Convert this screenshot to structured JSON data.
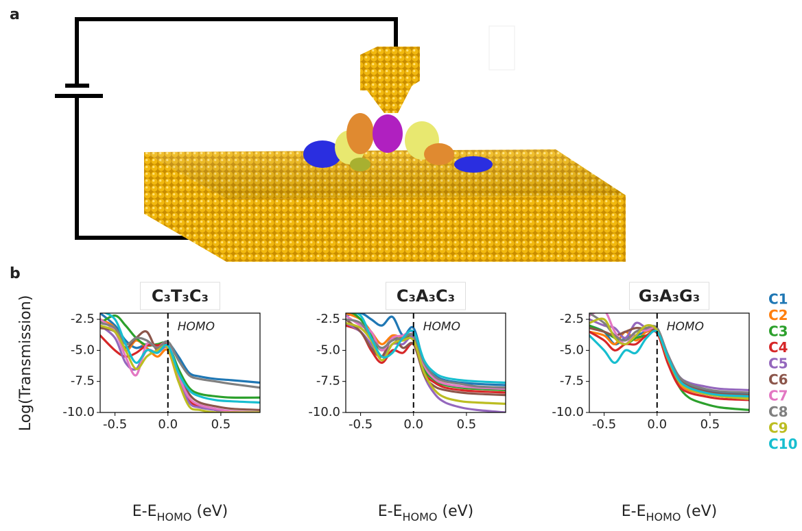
{
  "panel_labels": [
    "a",
    "b"
  ],
  "ylabel": "Log(Transmission)",
  "legend": [
    {
      "name": "C1",
      "color": "#1f77b4"
    },
    {
      "name": "C2",
      "color": "#ff7f0e"
    },
    {
      "name": "C3",
      "color": "#2ca02c"
    },
    {
      "name": "C4",
      "color": "#d62728"
    },
    {
      "name": "C5",
      "color": "#9467bd"
    },
    {
      "name": "C6",
      "color": "#8c564b"
    },
    {
      "name": "C7",
      "color": "#e377c2"
    },
    {
      "name": "C8",
      "color": "#7f7f7f"
    },
    {
      "name": "C9",
      "color": "#bcbd22"
    },
    {
      "name": "C10",
      "color": "#17becf"
    }
  ],
  "chart_data": [
    {
      "type": "line",
      "title": "C₃T₃C₃",
      "annotation": "HOMO",
      "xlabel": {
        "main": "E-E",
        "sub": "HOMO",
        "unit": " (eV)"
      },
      "vline": 0,
      "x": [
        -0.64,
        -0.5,
        -0.4,
        -0.3,
        -0.2,
        -0.1,
        0,
        0.1,
        0.2,
        0.3,
        0.45,
        0.6,
        0.87
      ],
      "xlim": [
        -0.64,
        0.87
      ],
      "ylim": [
        -10,
        -2.0
      ],
      "xticks": [
        -0.5,
        {
          "value": 0,
          "label": "0.0"
        },
        0.5
      ],
      "yticks": [
        -2.5,
        {
          "value": -5,
          "label": "-5.0"
        },
        -7.5,
        {
          "value": -10,
          "label": "-10.0"
        }
      ],
      "series": [
        {
          "values": [
            -2.0,
            -3.0,
            -4.2,
            -4.8,
            -4.5,
            -4.6,
            -4.4,
            -5.5,
            -6.8,
            -7.1,
            -7.3,
            -7.4,
            -7.6
          ]
        },
        {
          "values": [
            -2.5,
            -3.2,
            -5.0,
            -4.2,
            -4.8,
            -5.5,
            -5.0,
            -7.5,
            -9.0,
            -9.5,
            -9.8,
            -10,
            -10
          ]
        },
        {
          "values": [
            -2.8,
            -2.2,
            -3.0,
            -4.0,
            -4.6,
            -4.5,
            -4.5,
            -6.5,
            -8.0,
            -8.5,
            -8.7,
            -8.8,
            -8.8
          ]
        },
        {
          "values": [
            -3.8,
            -5.0,
            -5.5,
            -5.2,
            -4.6,
            -4.6,
            -4.6,
            -7.0,
            -9.0,
            -9.5,
            -9.8,
            -10,
            -10
          ]
        },
        {
          "values": [
            -3.0,
            -4.0,
            -6.0,
            -6.5,
            -5.0,
            -5.2,
            -4.8,
            -7.2,
            -9.2,
            -9.6,
            -9.8,
            -10,
            -10
          ]
        },
        {
          "values": [
            -3.2,
            -3.5,
            -4.8,
            -4.0,
            -3.5,
            -5.0,
            -4.6,
            -6.8,
            -8.5,
            -9.2,
            -9.5,
            -9.7,
            -9.8
          ]
        },
        {
          "values": [
            -2.5,
            -3.5,
            -5.5,
            -7.0,
            -4.5,
            -4.8,
            -4.4,
            -7.0,
            -8.8,
            -9.4,
            -9.7,
            -9.9,
            -10
          ]
        },
        {
          "values": [
            -2.8,
            -3.2,
            -4.5,
            -4.0,
            -4.2,
            -4.8,
            -4.3,
            -5.8,
            -7.0,
            -7.3,
            -7.5,
            -7.7,
            -8.0
          ]
        },
        {
          "values": [
            -3.0,
            -3.5,
            -5.0,
            -6.5,
            -5.5,
            -5.0,
            -4.8,
            -7.5,
            -9.5,
            -9.8,
            -10,
            -10,
            -10
          ]
        },
        {
          "values": [
            -1.8,
            -2.5,
            -4.5,
            -6.0,
            -5.0,
            -5.2,
            -4.6,
            -6.8,
            -8.2,
            -8.7,
            -9.0,
            -9.1,
            -9.2
          ]
        }
      ]
    },
    {
      "type": "line",
      "title": "C₃A₃C₃",
      "annotation": "HOMO",
      "xlabel": {
        "main": "E-E",
        "sub": "HOMO",
        "unit": " (eV)"
      },
      "vline": 0,
      "x": [
        -0.64,
        -0.5,
        -0.4,
        -0.3,
        -0.2,
        -0.1,
        0,
        0.1,
        0.2,
        0.3,
        0.45,
        0.6,
        0.87
      ],
      "xlim": [
        -0.64,
        0.87
      ],
      "ylim": [
        -10,
        -2.0
      ],
      "xticks": [
        -0.5,
        {
          "value": 0,
          "label": "0.0"
        },
        0.5
      ],
      "yticks": [
        -2.5,
        {
          "value": -5,
          "label": "-5.0"
        },
        -7.5,
        {
          "value": -10,
          "label": "-10.0"
        }
      ],
      "series": [
        {
          "values": [
            -2.2,
            -2.0,
            -2.5,
            -3.0,
            -2.3,
            -3.8,
            -3.2,
            -6.0,
            -7.0,
            -7.4,
            -7.6,
            -7.7,
            -7.8
          ]
        },
        {
          "values": [
            -2.0,
            -2.5,
            -3.5,
            -4.5,
            -3.8,
            -4.0,
            -4.0,
            -6.2,
            -7.3,
            -7.7,
            -8.0,
            -8.1,
            -8.2
          ]
        },
        {
          "values": [
            -1.6,
            -2.5,
            -3.8,
            -5.0,
            -4.0,
            -4.2,
            -4.0,
            -6.5,
            -7.4,
            -7.8,
            -8.0,
            -8.1,
            -8.2
          ]
        },
        {
          "values": [
            -3.0,
            -3.5,
            -5.0,
            -6.0,
            -5.0,
            -5.2,
            -4.5,
            -6.8,
            -7.6,
            -8.0,
            -8.2,
            -8.3,
            -8.4
          ]
        },
        {
          "values": [
            -2.8,
            -3.5,
            -4.5,
            -5.5,
            -4.5,
            -4.5,
            -4.0,
            -7.0,
            -8.5,
            -9.2,
            -9.6,
            -9.8,
            -10
          ]
        },
        {
          "values": [
            -2.5,
            -3.5,
            -4.8,
            -5.5,
            -4.0,
            -4.8,
            -4.5,
            -7.0,
            -7.9,
            -8.2,
            -8.4,
            -8.5,
            -8.6
          ]
        },
        {
          "values": [
            -2.2,
            -3.0,
            -3.5,
            -5.0,
            -4.0,
            -3.8,
            -3.6,
            -6.2,
            -7.3,
            -7.7,
            -7.9,
            -8.0,
            -8.1
          ]
        },
        {
          "values": [
            -2.5,
            -2.8,
            -4.0,
            -4.8,
            -4.2,
            -4.0,
            -3.8,
            -6.0,
            -7.1,
            -7.5,
            -7.7,
            -7.9,
            -8.0
          ]
        },
        {
          "values": [
            -2.8,
            -3.2,
            -4.2,
            -5.8,
            -4.5,
            -4.2,
            -4.2,
            -6.8,
            -8.2,
            -8.8,
            -9.1,
            -9.2,
            -9.3
          ]
        },
        {
          "values": [
            -1.8,
            -2.2,
            -4.0,
            -5.5,
            -5.2,
            -4.0,
            -3.5,
            -5.8,
            -6.8,
            -7.2,
            -7.4,
            -7.5,
            -7.6
          ]
        }
      ]
    },
    {
      "type": "line",
      "title": "G₃A₃G₃",
      "annotation": "HOMO",
      "xlabel": {
        "main": "E-E",
        "sub": "HOMO",
        "unit": " (eV)"
      },
      "vline": 0,
      "x": [
        -0.64,
        -0.5,
        -0.4,
        -0.3,
        -0.2,
        -0.1,
        0,
        0.1,
        0.2,
        0.3,
        0.45,
        0.6,
        0.87
      ],
      "xlim": [
        -0.64,
        0.87
      ],
      "ylim": [
        -10,
        -2.0
      ],
      "xticks": [
        -0.5,
        {
          "value": 0,
          "label": "0.0"
        },
        0.5
      ],
      "yticks": [
        -2.5,
        {
          "value": -5,
          "label": "-5.0"
        },
        -7.5,
        {
          "value": -10,
          "label": "-10.0"
        }
      ],
      "series": [
        {
          "values": [
            -3.0,
            -3.5,
            -4.5,
            -4.0,
            -3.8,
            -3.5,
            -3.5,
            -5.5,
            -7.2,
            -7.8,
            -8.2,
            -8.4,
            -8.5
          ]
        },
        {
          "values": [
            -3.5,
            -3.8,
            -4.5,
            -3.5,
            -4.2,
            -3.5,
            -3.6,
            -5.8,
            -7.6,
            -8.2,
            -8.5,
            -8.7,
            -8.8
          ]
        },
        {
          "values": [
            -3.0,
            -3.5,
            -4.0,
            -4.5,
            -4.0,
            -3.8,
            -3.5,
            -5.8,
            -7.8,
            -8.8,
            -9.3,
            -9.6,
            -9.8
          ]
        },
        {
          "values": [
            -3.5,
            -4.2,
            -5.0,
            -4.5,
            -4.5,
            -3.8,
            -3.6,
            -6.0,
            -7.8,
            -8.4,
            -8.7,
            -8.9,
            -9.0
          ]
        },
        {
          "values": [
            -2.5,
            -3.0,
            -3.2,
            -4.0,
            -2.8,
            -3.2,
            -3.3,
            -5.3,
            -7.0,
            -7.6,
            -7.9,
            -8.1,
            -8.2
          ]
        },
        {
          "values": [
            -3.2,
            -3.5,
            -3.8,
            -3.5,
            -3.2,
            -3.3,
            -3.5,
            -5.5,
            -7.2,
            -7.9,
            -8.3,
            -8.5,
            -8.6
          ]
        },
        {
          "values": [
            -2.2,
            -1.8,
            -3.5,
            -4.5,
            -3.5,
            -3.4,
            -3.3,
            -5.6,
            -7.4,
            -8.1,
            -8.5,
            -8.7,
            -8.9
          ]
        },
        {
          "values": [
            -2.0,
            -2.8,
            -3.8,
            -4.2,
            -3.5,
            -3.2,
            -3.2,
            -5.3,
            -7.0,
            -7.7,
            -8.1,
            -8.3,
            -8.4
          ]
        },
        {
          "values": [
            -2.8,
            -2.5,
            -4.0,
            -4.5,
            -3.8,
            -3.0,
            -3.4,
            -5.6,
            -7.4,
            -8.1,
            -8.5,
            -8.7,
            -8.9
          ]
        },
        {
          "values": [
            -3.8,
            -5.0,
            -6.0,
            -5.0,
            -5.2,
            -4.0,
            -3.5,
            -5.5,
            -7.3,
            -8.0,
            -8.4,
            -8.6,
            -8.7
          ]
        }
      ]
    }
  ]
}
